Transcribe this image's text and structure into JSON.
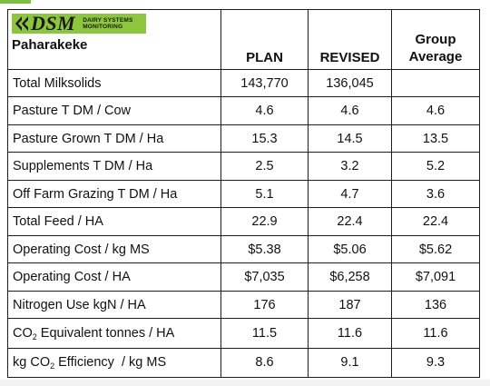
{
  "logo": {
    "brand": "DSM",
    "subtitle_line1": "DAIRY SYSTEMS",
    "subtitle_line2": "MONITORING",
    "color": "#8cc63f"
  },
  "farm_name": "Paharakeke",
  "columns": {
    "plan": "PLAN",
    "revised": "REVISED",
    "group_line1": "Group",
    "group_line2": "Average"
  },
  "rows": [
    {
      "label": "Total Milksolids",
      "plan": "143,770",
      "revised": "136,045",
      "group": ""
    },
    {
      "label": "Pasture T DM / Cow",
      "plan": "4.6",
      "revised": "4.6",
      "group": "4.6"
    },
    {
      "label": "Pasture Grown T DM / Ha",
      "plan": "15.3",
      "revised": "14.5",
      "group": "13.5"
    },
    {
      "label": "Supplements T DM / Ha",
      "plan": "2.5",
      "revised": "3.2",
      "group": "5.2"
    },
    {
      "label": "Off Farm Grazing T DM / Ha",
      "plan": "5.1",
      "revised": "4.7",
      "group": "3.6"
    },
    {
      "label": "Total Feed / HA",
      "plan": "22.9",
      "revised": "22.4",
      "group": "22.4"
    },
    {
      "label": "Operating Cost / kg MS",
      "plan": "$5.38",
      "revised": "$5.06",
      "group": "$5.62"
    },
    {
      "label": "Operating Cost / HA",
      "plan": "$7,035",
      "revised": "$6,258",
      "group": "$7,091"
    },
    {
      "label": "Nitrogen Use kgN / HA",
      "plan": "176",
      "revised": "187",
      "group": "136"
    },
    {
      "label_pre": "CO",
      "label_sub": "2",
      "label_post": " Equivalent tonnes / HA",
      "plan": "11.5",
      "revised": "11.6",
      "group": "11.6"
    },
    {
      "label_pre": "kg CO",
      "label_sub": "2",
      "label_post": " Efficiency  / kg MS",
      "plan": "8.6",
      "revised": "9.1",
      "group": "9.3"
    }
  ]
}
